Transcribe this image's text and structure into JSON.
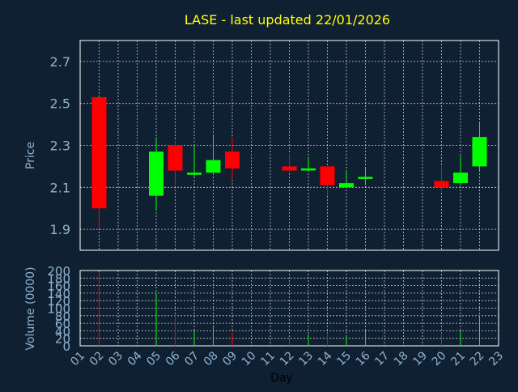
{
  "chart_data": {
    "type": "candlestick",
    "title": "LASE - last updated 22/01/2026",
    "grid": true,
    "colors": {
      "background": "#102033",
      "up": "#00ff00",
      "down": "#ff0000",
      "title": "#ffff00",
      "axis_text": "#8fb3cf",
      "grid": "#ffffff"
    },
    "x_ticks": [
      "01",
      "02",
      "03",
      "04",
      "05",
      "06",
      "07",
      "08",
      "09",
      "10",
      "11",
      "12",
      "13",
      "14",
      "15",
      "16",
      "17",
      "18",
      "19",
      "20",
      "21",
      "22",
      "23"
    ],
    "xlabel": "Day",
    "price_panel": {
      "ylabel": "Price",
      "ylim": [
        1.8,
        2.8
      ],
      "y_ticks": [
        1.9,
        2.1,
        2.3,
        2.5,
        2.7
      ],
      "y_tick_labels": [
        "1.9",
        "2.1",
        "2.3",
        "2.5",
        "2.7"
      ]
    },
    "volume_panel": {
      "ylabel": "Volume (0000)",
      "ylim": [
        0,
        200
      ],
      "y_ticks": [
        0,
        20,
        40,
        60,
        80,
        100,
        120,
        140,
        160,
        180,
        200
      ],
      "y_tick_labels": [
        "0",
        "20",
        "40",
        "60",
        "80",
        "100",
        "120",
        "140",
        "160",
        "180",
        "200"
      ]
    },
    "candles": [
      {
        "day": "02",
        "open": 2.53,
        "close": 2.0,
        "high": 2.53,
        "low": 1.9,
        "volume": 195
      },
      {
        "day": "05",
        "open": 2.06,
        "close": 2.27,
        "high": 2.34,
        "low": 1.99,
        "volume": 140
      },
      {
        "day": "06",
        "open": 2.3,
        "close": 2.18,
        "high": 2.32,
        "low": 2.11,
        "volume": 80
      },
      {
        "day": "07",
        "open": 2.16,
        "close": 2.17,
        "high": 2.3,
        "low": 2.15,
        "volume": 40
      },
      {
        "day": "08",
        "open": 2.17,
        "close": 2.23,
        "high": 2.35,
        "low": 2.16,
        "volume": 55
      },
      {
        "day": "09",
        "open": 2.27,
        "close": 2.19,
        "high": 2.34,
        "low": 2.14,
        "volume": 38
      },
      {
        "day": "12",
        "open": 2.2,
        "close": 2.18,
        "high": 2.26,
        "low": 2.17,
        "volume": 18
      },
      {
        "day": "13",
        "open": 2.19,
        "close": 2.19,
        "high": 2.24,
        "low": 2.18,
        "volume": 30
      },
      {
        "day": "14",
        "open": 2.2,
        "close": 2.11,
        "high": 2.2,
        "low": 2.06,
        "volume": 35
      },
      {
        "day": "15",
        "open": 2.1,
        "close": 2.12,
        "high": 2.18,
        "low": 2.1,
        "volume": 25
      },
      {
        "day": "16",
        "open": 2.14,
        "close": 2.15,
        "high": 2.19,
        "low": 2.11,
        "volume": 40
      },
      {
        "day": "20",
        "open": 2.13,
        "close": 2.1,
        "high": 2.2,
        "low": 2.08,
        "volume": 35
      },
      {
        "day": "21",
        "open": 2.12,
        "close": 2.17,
        "high": 2.25,
        "low": 2.11,
        "volume": 40
      },
      {
        "day": "22",
        "open": 2.2,
        "close": 2.34,
        "high": 2.41,
        "low": 2.18,
        "volume": 80
      }
    ]
  }
}
